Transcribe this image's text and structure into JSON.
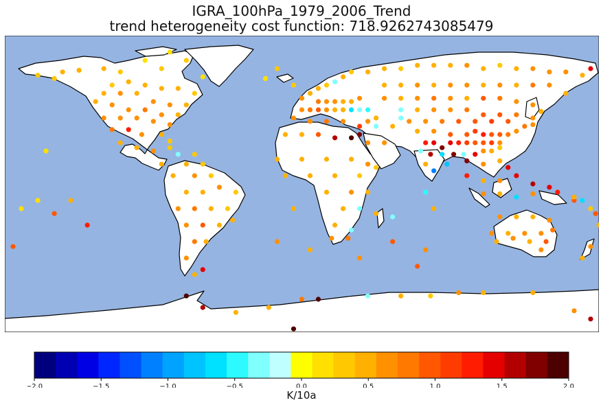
{
  "title": "IGRA_100hPa_1979_2006_Trend",
  "subtitle": "trend heterogeneity cost function: 718.9262743085479",
  "colorbar": {
    "label": "K/10a",
    "ticks": [
      "−2.0",
      "−1.5",
      "−1.0",
      "−0.5",
      "0.0",
      "0.5",
      "1.0",
      "1.5",
      "2.0"
    ],
    "range": [
      -2.0,
      2.0
    ],
    "colors": [
      "#00007f",
      "#0000b2",
      "#0000e5",
      "#0026ff",
      "#0050ff",
      "#0080ff",
      "#00a4ff",
      "#00c4ff",
      "#00e0ff",
      "#2cfaff",
      "#80ffff",
      "#c0ffff",
      "#ffff00",
      "#ffe000",
      "#ffc800",
      "#ffb000",
      "#ff9000",
      "#ff7800",
      "#ff5800",
      "#ff3c00",
      "#ff1c00",
      "#e50000",
      "#b20000",
      "#800000",
      "#4c0000"
    ]
  },
  "map": {
    "ocean_color": "#96b4e1",
    "land_color": "#ffffff",
    "projection": "plate-carree"
  },
  "chart_data": {
    "type": "scatter",
    "x_name": "longitude",
    "y_name": "latitude",
    "c_name": "trend (K/10a)",
    "points": [
      [
        -160,
        66,
        0.3
      ],
      [
        -150,
        64,
        0.3
      ],
      [
        -145,
        68,
        0.4
      ],
      [
        -135,
        69,
        0.5
      ],
      [
        -120,
        70,
        0.4
      ],
      [
        -110,
        68,
        0.3
      ],
      [
        -95,
        75,
        0.2
      ],
      [
        -85,
        70,
        0.3
      ],
      [
        -80,
        80,
        0.2
      ],
      [
        -70,
        75,
        0.3
      ],
      [
        -60,
        65,
        0.2
      ],
      [
        -115,
        60,
        0.3
      ],
      [
        -105,
        62,
        0.4
      ],
      [
        -95,
        60,
        0.5
      ],
      [
        -85,
        58,
        0.4
      ],
      [
        -75,
        58,
        0.4
      ],
      [
        -65,
        55,
        0.3
      ],
      [
        -120,
        55,
        0.5
      ],
      [
        -110,
        55,
        0.6
      ],
      [
        -100,
        55,
        0.5
      ],
      [
        -90,
        50,
        0.6
      ],
      [
        -80,
        48,
        0.6
      ],
      [
        -70,
        48,
        0.5
      ],
      [
        -125,
        50,
        0.4
      ],
      [
        -115,
        48,
        0.7
      ],
      [
        -105,
        45,
        0.6
      ],
      [
        -95,
        45,
        0.8
      ],
      [
        -85,
        42,
        0.6
      ],
      [
        -75,
        42,
        0.5
      ],
      [
        -120,
        40,
        0.7
      ],
      [
        -110,
        40,
        0.6
      ],
      [
        -100,
        40,
        0.7
      ],
      [
        -90,
        38,
        0.7
      ],
      [
        -80,
        36,
        0.6
      ],
      [
        -115,
        33,
        0.8
      ],
      [
        -105,
        33,
        1.2
      ],
      [
        -97,
        30,
        0.6
      ],
      [
        -85,
        30,
        0.5
      ],
      [
        -80,
        26,
        0.3
      ],
      [
        -110,
        25,
        0.5
      ],
      [
        -100,
        22,
        0.4
      ],
      [
        -90,
        20,
        0.6
      ],
      [
        -80,
        22,
        0.3
      ],
      [
        -75,
        18,
        -0.3
      ],
      [
        -65,
        18,
        0.3
      ],
      [
        -85,
        12,
        0.4
      ],
      [
        -70,
        12,
        0.5
      ],
      [
        -60,
        12,
        0.3
      ],
      [
        -78,
        5,
        0.4
      ],
      [
        -65,
        5,
        0.6
      ],
      [
        -55,
        5,
        0.3
      ],
      [
        -70,
        -5,
        0.5
      ],
      [
        -60,
        -5,
        0.4
      ],
      [
        -50,
        -2,
        0.6
      ],
      [
        -40,
        -5,
        0.3
      ],
      [
        -75,
        -15,
        0.7
      ],
      [
        -65,
        -15,
        0.8
      ],
      [
        -55,
        -15,
        0.5
      ],
      [
        -45,
        -15,
        0.3
      ],
      [
        -70,
        -25,
        0.6
      ],
      [
        -60,
        -25,
        0.9
      ],
      [
        -50,
        -25,
        0.5
      ],
      [
        -42,
        -22,
        0.4
      ],
      [
        -65,
        -35,
        0.8
      ],
      [
        -58,
        -35,
        0.5
      ],
      [
        -70,
        -45,
        0.6
      ],
      [
        -60,
        -52,
        1.4
      ],
      [
        -65,
        -55,
        0.4
      ],
      [
        -155,
        20,
        0.1
      ],
      [
        -160,
        -10,
        0.2
      ],
      [
        -140,
        -10,
        0.5
      ],
      [
        -150,
        -18,
        0.9
      ],
      [
        -170,
        -15,
        0.1
      ],
      [
        -130,
        -25,
        1.2
      ],
      [
        -175,
        -38,
        0.9
      ],
      [
        -22,
        64,
        0.1
      ],
      [
        -15,
        70,
        0.3
      ],
      [
        -5,
        60,
        0.3
      ],
      [
        0,
        52,
        0.6
      ],
      [
        5,
        55,
        0.5
      ],
      [
        10,
        58,
        0.5
      ],
      [
        15,
        60,
        0.3
      ],
      [
        20,
        62,
        -0.4
      ],
      [
        25,
        65,
        0.4
      ],
      [
        30,
        68,
        0.3
      ],
      [
        40,
        68,
        0.5
      ],
      [
        10,
        50,
        0.8
      ],
      [
        15,
        50,
        0.7
      ],
      [
        20,
        50,
        0.6
      ],
      [
        25,
        50,
        0.5
      ],
      [
        30,
        50,
        0.4
      ],
      [
        35,
        52,
        0.6
      ],
      [
        0,
        45,
        0.7
      ],
      [
        5,
        45,
        0.8
      ],
      [
        10,
        45,
        0.9
      ],
      [
        15,
        45,
        0.6
      ],
      [
        20,
        45,
        0.5
      ],
      [
        25,
        45,
        0.4
      ],
      [
        30,
        45,
        -0.6
      ],
      [
        35,
        45,
        -0.4
      ],
      [
        40,
        45,
        -0.5
      ],
      [
        -5,
        40,
        0.6
      ],
      [
        5,
        38,
        0.7
      ],
      [
        15,
        38,
        0.8
      ],
      [
        25,
        38,
        0.6
      ],
      [
        35,
        35,
        1.1
      ],
      [
        40,
        38,
        0.7
      ],
      [
        45,
        40,
        0.5
      ],
      [
        -10,
        30,
        0.4
      ],
      [
        0,
        30,
        0.5
      ],
      [
        10,
        30,
        0.9
      ],
      [
        20,
        28,
        1.6
      ],
      [
        30,
        28,
        2.0
      ],
      [
        35,
        30,
        1.8
      ],
      [
        40,
        25,
        0.6
      ],
      [
        50,
        25,
        0.7
      ],
      [
        45,
        35,
        -0.4
      ],
      [
        55,
        35,
        0.5
      ],
      [
        60,
        40,
        -0.3
      ],
      [
        -15,
        15,
        0.4
      ],
      [
        0,
        15,
        0.5
      ],
      [
        15,
        15,
        0.4
      ],
      [
        30,
        15,
        0.4
      ],
      [
        40,
        12,
        0.6
      ],
      [
        45,
        10,
        0.3
      ],
      [
        -10,
        5,
        0.5
      ],
      [
        5,
        5,
        0.5
      ],
      [
        20,
        5,
        0.4
      ],
      [
        35,
        5,
        0.3
      ],
      [
        15,
        -5,
        0.5
      ],
      [
        30,
        -5,
        0.6
      ],
      [
        40,
        -5,
        0.4
      ],
      [
        25,
        -15,
        0.5
      ],
      [
        35,
        -15,
        -0.3
      ],
      [
        45,
        -18,
        0.5
      ],
      [
        55,
        -20,
        -0.4
      ],
      [
        20,
        -25,
        0.5
      ],
      [
        30,
        -28,
        -0.4
      ],
      [
        18,
        -33,
        0.6
      ],
      [
        28,
        -33,
        0.8
      ],
      [
        -5,
        -15,
        0.5
      ],
      [
        -15,
        -35,
        0.7
      ],
      [
        5,
        -40,
        0.5
      ],
      [
        35,
        -45,
        0.6
      ],
      [
        55,
        -35,
        1.0
      ],
      [
        75,
        -40,
        0.6
      ],
      [
        70,
        -50,
        0.9
      ],
      [
        50,
        70,
        0.4
      ],
      [
        60,
        70,
        0.3
      ],
      [
        70,
        72,
        0.4
      ],
      [
        80,
        72,
        0.5
      ],
      [
        90,
        72,
        0.4
      ],
      [
        100,
        72,
        0.6
      ],
      [
        110,
        70,
        0.5
      ],
      [
        120,
        72,
        0.3
      ],
      [
        130,
        70,
        0.5
      ],
      [
        140,
        70,
        0.6
      ],
      [
        150,
        68,
        0.7
      ],
      [
        160,
        68,
        0.6
      ],
      [
        170,
        66,
        0.4
      ],
      [
        175,
        70,
        1.4
      ],
      [
        50,
        60,
        0.5
      ],
      [
        60,
        60,
        0.4
      ],
      [
        70,
        60,
        0.6
      ],
      [
        80,
        60,
        0.5
      ],
      [
        90,
        60,
        0.7
      ],
      [
        100,
        60,
        0.6
      ],
      [
        110,
        60,
        0.4
      ],
      [
        120,
        60,
        0.6
      ],
      [
        130,
        60,
        0.5
      ],
      [
        140,
        60,
        0.8
      ],
      [
        150,
        60,
        0.7
      ],
      [
        160,
        55,
        0.5
      ],
      [
        50,
        52,
        0.6
      ],
      [
        60,
        52,
        0.5
      ],
      [
        70,
        52,
        0.6
      ],
      [
        80,
        52,
        0.8
      ],
      [
        90,
        52,
        0.7
      ],
      [
        100,
        52,
        0.5
      ],
      [
        110,
        52,
        0.9
      ],
      [
        120,
        52,
        0.8
      ],
      [
        130,
        50,
        0.7
      ],
      [
        140,
        48,
        0.6
      ],
      [
        60,
        45,
        -0.4
      ],
      [
        70,
        45,
        0.5
      ],
      [
        80,
        45,
        0.6
      ],
      [
        90,
        45,
        0.7
      ],
      [
        100,
        45,
        0.8
      ],
      [
        110,
        42,
        1.0
      ],
      [
        120,
        42,
        0.9
      ],
      [
        130,
        42,
        0.8
      ],
      [
        140,
        40,
        0.7
      ],
      [
        145,
        44,
        0.5
      ],
      [
        65,
        38,
        0.6
      ],
      [
        75,
        38,
        0.7
      ],
      [
        85,
        38,
        0.8
      ],
      [
        95,
        38,
        0.9
      ],
      [
        105,
        38,
        1.0
      ],
      [
        115,
        38,
        1.1
      ],
      [
        125,
        38,
        0.9
      ],
      [
        135,
        35,
        0.8
      ],
      [
        140,
        36,
        0.6
      ],
      [
        70,
        32,
        0.5
      ],
      [
        80,
        32,
        0.6
      ],
      [
        90,
        30,
        0.9
      ],
      [
        100,
        30,
        1.0
      ],
      [
        105,
        32,
        1.1
      ],
      [
        110,
        30,
        1.2
      ],
      [
        115,
        30,
        1.0
      ],
      [
        120,
        30,
        0.9
      ],
      [
        125,
        30,
        0.8
      ],
      [
        130,
        32,
        0.7
      ],
      [
        75,
        25,
        1.2
      ],
      [
        80,
        25,
        1.4
      ],
      [
        85,
        22,
        1.8
      ],
      [
        90,
        25,
        1.5
      ],
      [
        95,
        25,
        1.3
      ],
      [
        100,
        25,
        1.1
      ],
      [
        105,
        25,
        1.0
      ],
      [
        110,
        25,
        0.9
      ],
      [
        115,
        25,
        1.1
      ],
      [
        120,
        25,
        0.7
      ],
      [
        72,
        20,
        -0.4
      ],
      [
        78,
        18,
        1.6
      ],
      [
        85,
        18,
        -0.6
      ],
      [
        92,
        18,
        1.7
      ],
      [
        98,
        18,
        -0.3
      ],
      [
        105,
        18,
        1.5
      ],
      [
        110,
        20,
        0.6
      ],
      [
        115,
        20,
        0.5
      ],
      [
        120,
        22,
        0.3
      ],
      [
        75,
        12,
        0.4
      ],
      [
        80,
        8,
        -1.2
      ],
      [
        88,
        12,
        -0.8
      ],
      [
        100,
        14,
        1.7
      ],
      [
        110,
        12,
        0.7
      ],
      [
        120,
        14,
        0.5
      ],
      [
        125,
        10,
        1.5
      ],
      [
        100,
        5,
        1.3
      ],
      [
        110,
        2,
        0.5
      ],
      [
        120,
        2,
        0.6
      ],
      [
        130,
        5,
        1.4
      ],
      [
        140,
        0,
        1.6
      ],
      [
        150,
        -2,
        1.5
      ],
      [
        110,
        -6,
        0.6
      ],
      [
        120,
        -6,
        0.5
      ],
      [
        130,
        -8,
        -0.6
      ],
      [
        140,
        -6,
        0.7
      ],
      [
        155,
        -5,
        1.3
      ],
      [
        165,
        -10,
        0.9
      ],
      [
        75,
        -5,
        -0.5
      ],
      [
        80,
        -15,
        0.5
      ],
      [
        120,
        -20,
        0.6
      ],
      [
        130,
        -20,
        0.5
      ],
      [
        140,
        -20,
        0.4
      ],
      [
        150,
        -22,
        0.6
      ],
      [
        115,
        -30,
        0.6
      ],
      [
        125,
        -30,
        0.5
      ],
      [
        135,
        -30,
        0.6
      ],
      [
        145,
        -30,
        0.7
      ],
      [
        152,
        -28,
        0.8
      ],
      [
        118,
        -35,
        0.4
      ],
      [
        128,
        -33,
        0.6
      ],
      [
        138,
        -35,
        0.5
      ],
      [
        148,
        -35,
        0.9
      ],
      [
        145,
        -40,
        0.7
      ],
      [
        170,
        -45,
        0.5
      ],
      [
        175,
        -38,
        0.6
      ],
      [
        178,
        -18,
        1.0
      ],
      [
        170,
        -10,
        -0.6
      ],
      [
        165,
        -8,
        0.4
      ],
      [
        175,
        -15,
        0.3
      ],
      [
        180,
        -25,
        0.5
      ]
    ],
    "points_antarctic": [
      [
        -70,
        -68,
        1.9
      ],
      [
        -60,
        -75,
        1.6
      ],
      [
        -40,
        -78,
        0.5
      ],
      [
        -20,
        -75,
        0.4
      ],
      [
        0,
        -70,
        0.8
      ],
      [
        10,
        -70,
        1.9
      ],
      [
        40,
        -68,
        -0.3
      ],
      [
        60,
        -68,
        0.4
      ],
      [
        78,
        -68,
        0.3
      ],
      [
        95,
        -66,
        0.6
      ],
      [
        110,
        -66,
        0.5
      ],
      [
        140,
        -66,
        0.4
      ],
      [
        165,
        -77,
        0.6
      ],
      [
        175,
        -82,
        1.6
      ],
      [
        -5,
        -88,
        2.0
      ]
    ]
  }
}
